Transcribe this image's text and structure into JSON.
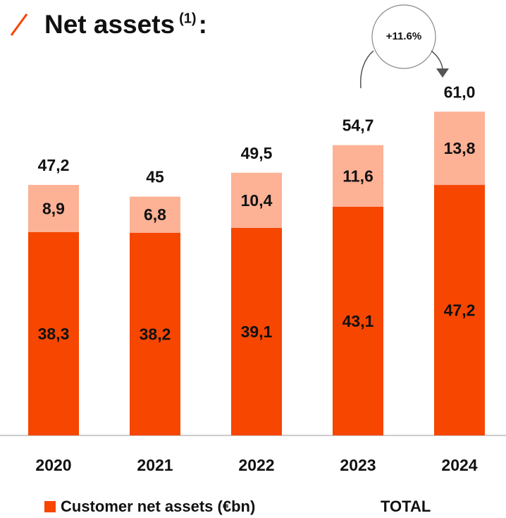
{
  "chart_data": {
    "type": "stacked_bar",
    "title": {
      "text": "Net assets",
      "footnote": "(1)",
      "end": ":"
    },
    "categories": [
      "2020",
      "2021",
      "2022",
      "2023",
      "2024"
    ],
    "series": [
      {
        "name": "Customer net assets (€bn)",
        "color": "#f64600",
        "values": [
          38.3,
          38.2,
          39.1,
          43.1,
          47.2
        ],
        "value_labels": [
          "38,3",
          "38,2",
          "39,1",
          "43,1",
          "47,2"
        ]
      },
      {
        "color": "#fdb195",
        "values": [
          8.9,
          6.8,
          10.4,
          11.6,
          13.8
        ],
        "value_labels": [
          "8,9",
          "6,8",
          "10,4",
          "11,6",
          "13,8"
        ]
      }
    ],
    "totals": [
      47.2,
      45,
      49.5,
      54.7,
      61.0
    ],
    "total_labels": [
      "47,2",
      "45",
      "49,5",
      "54,7",
      "61,0"
    ],
    "total_legend": "TOTAL",
    "annotation": "+11.6%"
  }
}
